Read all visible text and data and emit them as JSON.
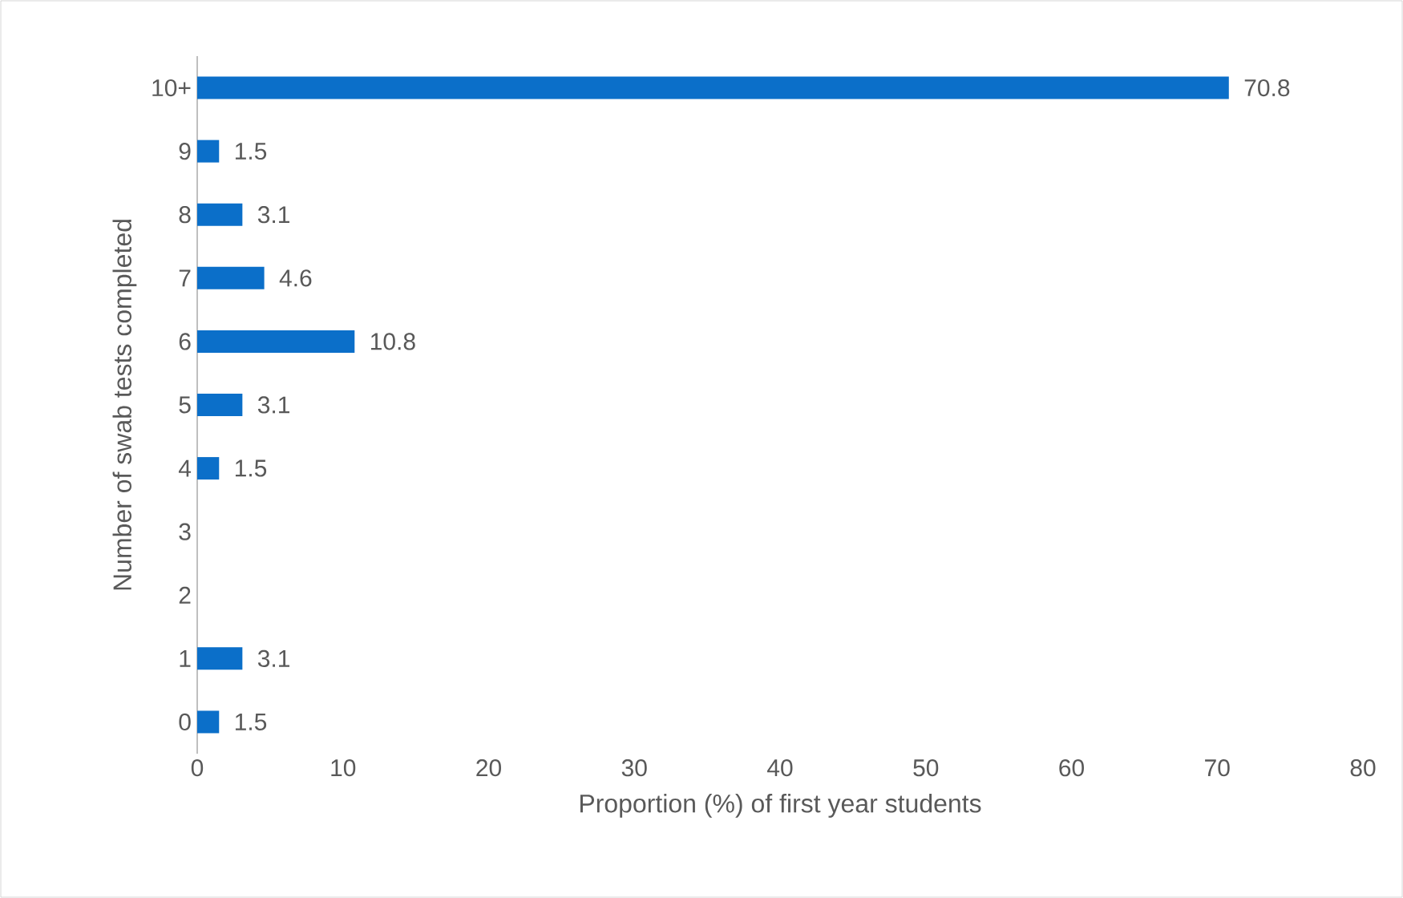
{
  "chart_data": {
    "type": "bar",
    "orientation": "horizontal",
    "xlabel": "Proportion (%) of first year students",
    "ylabel": "Number of swab tests completed",
    "categories": [
      "10+",
      "9",
      "8",
      "7",
      "6",
      "5",
      "4",
      "3",
      "2",
      "1",
      "0"
    ],
    "values": [
      70.8,
      1.5,
      3.1,
      4.6,
      10.8,
      3.1,
      1.5,
      null,
      null,
      3.1,
      1.5
    ],
    "color": "#0b6fc9",
    "xlim": [
      0,
      80
    ],
    "xticks": [
      0,
      10,
      20,
      30,
      40,
      50,
      60,
      70,
      80
    ],
    "data_labels": true
  }
}
